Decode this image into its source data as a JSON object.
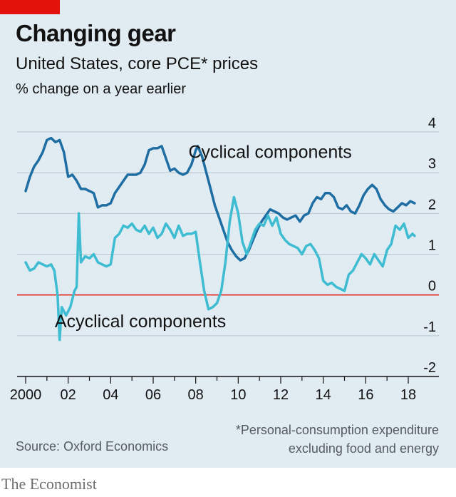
{
  "header": {
    "title": "Changing gear",
    "subtitle": "United States, core PCE* prices",
    "unit": "% change on a year earlier"
  },
  "footer": {
    "footnote_line1": "*Personal-consumption expenditure",
    "footnote_line2": "excluding food and energy",
    "source": "Source: Oxford Economics",
    "brand": "The Economist"
  },
  "colors": {
    "background": "#e1ebf2",
    "cyclical": "#1f6ea3",
    "acyclical": "#3ebcd2",
    "zero_line": "#e3120b",
    "grid": "#b7c6cf",
    "tag": "#e3120b"
  },
  "chart_data": {
    "type": "line",
    "title": "Changing gear",
    "subtitle": "United States, core PCE* prices",
    "ylabel": "% change on a year earlier",
    "xlim": [
      1999.7,
      2018.4
    ],
    "ylim": [
      -2,
      4
    ],
    "yticks": [
      4,
      3,
      2,
      1,
      0,
      -1,
      -2
    ],
    "xticks": [
      {
        "value": 2000,
        "label": "2000"
      },
      {
        "value": 2002,
        "label": "02"
      },
      {
        "value": 2004,
        "label": "04"
      },
      {
        "value": 2006,
        "label": "06"
      },
      {
        "value": 2008,
        "label": "08"
      },
      {
        "value": 2010,
        "label": "10"
      },
      {
        "value": 2012,
        "label": "12"
      },
      {
        "value": 2014,
        "label": "14"
      },
      {
        "value": 2016,
        "label": "16"
      },
      {
        "value": 2018,
        "label": "18"
      }
    ],
    "grid": true,
    "series": [
      {
        "name": "Cyclical components",
        "points": [
          [
            2000.0,
            2.55
          ],
          [
            2000.2,
            2.9
          ],
          [
            2000.4,
            3.15
          ],
          [
            2000.6,
            3.3
          ],
          [
            2000.8,
            3.5
          ],
          [
            2001.0,
            3.8
          ],
          [
            2001.2,
            3.85
          ],
          [
            2001.4,
            3.75
          ],
          [
            2001.6,
            3.8
          ],
          [
            2001.8,
            3.5
          ],
          [
            2002.0,
            2.9
          ],
          [
            2002.2,
            2.95
          ],
          [
            2002.4,
            2.8
          ],
          [
            2002.6,
            2.6
          ],
          [
            2002.8,
            2.6
          ],
          [
            2003.0,
            2.55
          ],
          [
            2003.2,
            2.5
          ],
          [
            2003.4,
            2.15
          ],
          [
            2003.6,
            2.2
          ],
          [
            2003.8,
            2.2
          ],
          [
            2004.0,
            2.25
          ],
          [
            2004.2,
            2.5
          ],
          [
            2004.4,
            2.65
          ],
          [
            2004.6,
            2.8
          ],
          [
            2004.8,
            2.95
          ],
          [
            2005.0,
            2.95
          ],
          [
            2005.2,
            2.95
          ],
          [
            2005.4,
            3.0
          ],
          [
            2005.6,
            3.2
          ],
          [
            2005.8,
            3.55
          ],
          [
            2006.0,
            3.6
          ],
          [
            2006.2,
            3.6
          ],
          [
            2006.4,
            3.65
          ],
          [
            2006.6,
            3.35
          ],
          [
            2006.8,
            3.05
          ],
          [
            2007.0,
            3.1
          ],
          [
            2007.2,
            3.0
          ],
          [
            2007.4,
            2.95
          ],
          [
            2007.6,
            3.0
          ],
          [
            2007.8,
            3.2
          ],
          [
            2008.0,
            3.55
          ],
          [
            2008.1,
            3.65
          ],
          [
            2008.3,
            3.4
          ],
          [
            2008.5,
            3.0
          ],
          [
            2008.7,
            2.6
          ],
          [
            2008.9,
            2.2
          ],
          [
            2009.1,
            1.9
          ],
          [
            2009.3,
            1.6
          ],
          [
            2009.5,
            1.3
          ],
          [
            2009.7,
            1.1
          ],
          [
            2009.9,
            0.95
          ],
          [
            2010.1,
            0.85
          ],
          [
            2010.3,
            0.9
          ],
          [
            2010.5,
            1.1
          ],
          [
            2010.7,
            1.35
          ],
          [
            2010.9,
            1.6
          ],
          [
            2011.1,
            1.8
          ],
          [
            2011.3,
            1.95
          ],
          [
            2011.5,
            2.1
          ],
          [
            2011.7,
            2.05
          ],
          [
            2011.9,
            2.0
          ],
          [
            2012.1,
            1.9
          ],
          [
            2012.3,
            1.85
          ],
          [
            2012.5,
            1.9
          ],
          [
            2012.7,
            1.95
          ],
          [
            2012.9,
            1.8
          ],
          [
            2013.1,
            1.95
          ],
          [
            2013.3,
            2.0
          ],
          [
            2013.5,
            2.25
          ],
          [
            2013.7,
            2.4
          ],
          [
            2013.9,
            2.35
          ],
          [
            2014.1,
            2.5
          ],
          [
            2014.3,
            2.5
          ],
          [
            2014.5,
            2.4
          ],
          [
            2014.7,
            2.15
          ],
          [
            2014.9,
            2.1
          ],
          [
            2015.1,
            2.2
          ],
          [
            2015.3,
            2.05
          ],
          [
            2015.5,
            2.0
          ],
          [
            2015.7,
            2.2
          ],
          [
            2015.9,
            2.45
          ],
          [
            2016.1,
            2.6
          ],
          [
            2016.3,
            2.7
          ],
          [
            2016.5,
            2.6
          ],
          [
            2016.7,
            2.35
          ],
          [
            2016.9,
            2.2
          ],
          [
            2017.1,
            2.1
          ],
          [
            2017.3,
            2.05
          ],
          [
            2017.5,
            2.15
          ],
          [
            2017.7,
            2.25
          ],
          [
            2017.9,
            2.2
          ],
          [
            2018.1,
            2.3
          ],
          [
            2018.3,
            2.25
          ]
        ]
      },
      {
        "name": "Acyclical components",
        "points": [
          [
            2000.0,
            0.8
          ],
          [
            2000.2,
            0.6
          ],
          [
            2000.4,
            0.65
          ],
          [
            2000.6,
            0.8
          ],
          [
            2000.8,
            0.75
          ],
          [
            2001.0,
            0.7
          ],
          [
            2001.2,
            0.75
          ],
          [
            2001.35,
            0.6
          ],
          [
            2001.5,
            0.0
          ],
          [
            2001.6,
            -1.1
          ],
          [
            2001.7,
            -0.3
          ],
          [
            2001.9,
            -0.5
          ],
          [
            2002.1,
            -0.3
          ],
          [
            2002.3,
            0.1
          ],
          [
            2002.4,
            0.2
          ],
          [
            2002.5,
            2.0
          ],
          [
            2002.6,
            0.8
          ],
          [
            2002.8,
            0.95
          ],
          [
            2003.0,
            0.9
          ],
          [
            2003.2,
            1.0
          ],
          [
            2003.4,
            0.8
          ],
          [
            2003.6,
            0.75
          ],
          [
            2003.8,
            0.7
          ],
          [
            2004.0,
            0.75
          ],
          [
            2004.2,
            1.4
          ],
          [
            2004.4,
            1.5
          ],
          [
            2004.6,
            1.7
          ],
          [
            2004.8,
            1.65
          ],
          [
            2005.0,
            1.75
          ],
          [
            2005.2,
            1.6
          ],
          [
            2005.4,
            1.55
          ],
          [
            2005.6,
            1.7
          ],
          [
            2005.8,
            1.5
          ],
          [
            2006.0,
            1.65
          ],
          [
            2006.2,
            1.4
          ],
          [
            2006.4,
            1.5
          ],
          [
            2006.6,
            1.75
          ],
          [
            2006.8,
            1.6
          ],
          [
            2007.0,
            1.4
          ],
          [
            2007.2,
            1.7
          ],
          [
            2007.4,
            1.45
          ],
          [
            2007.6,
            1.5
          ],
          [
            2007.8,
            1.5
          ],
          [
            2008.0,
            1.55
          ],
          [
            2008.2,
            0.8
          ],
          [
            2008.4,
            0.1
          ],
          [
            2008.6,
            -0.35
          ],
          [
            2008.8,
            -0.3
          ],
          [
            2009.0,
            -0.2
          ],
          [
            2009.2,
            0.1
          ],
          [
            2009.4,
            0.8
          ],
          [
            2009.6,
            1.8
          ],
          [
            2009.8,
            2.4
          ],
          [
            2010.0,
            2.0
          ],
          [
            2010.2,
            1.3
          ],
          [
            2010.4,
            1.0
          ],
          [
            2010.6,
            1.3
          ],
          [
            2010.8,
            1.6
          ],
          [
            2011.0,
            1.75
          ],
          [
            2011.2,
            1.7
          ],
          [
            2011.4,
            1.95
          ],
          [
            2011.6,
            1.7
          ],
          [
            2011.8,
            1.9
          ],
          [
            2012.0,
            1.5
          ],
          [
            2012.2,
            1.35
          ],
          [
            2012.4,
            1.25
          ],
          [
            2012.6,
            1.2
          ],
          [
            2012.8,
            1.15
          ],
          [
            2013.0,
            1.0
          ],
          [
            2013.2,
            1.2
          ],
          [
            2013.4,
            1.25
          ],
          [
            2013.6,
            1.1
          ],
          [
            2013.8,
            0.9
          ],
          [
            2014.0,
            0.35
          ],
          [
            2014.2,
            0.25
          ],
          [
            2014.4,
            0.3
          ],
          [
            2014.6,
            0.2
          ],
          [
            2014.8,
            0.15
          ],
          [
            2015.0,
            0.1
          ],
          [
            2015.2,
            0.5
          ],
          [
            2015.4,
            0.6
          ],
          [
            2015.6,
            0.8
          ],
          [
            2015.8,
            1.0
          ],
          [
            2016.0,
            0.9
          ],
          [
            2016.2,
            0.75
          ],
          [
            2016.4,
            1.0
          ],
          [
            2016.6,
            0.85
          ],
          [
            2016.8,
            0.7
          ],
          [
            2017.0,
            1.1
          ],
          [
            2017.2,
            1.25
          ],
          [
            2017.4,
            1.7
          ],
          [
            2017.6,
            1.6
          ],
          [
            2017.8,
            1.75
          ],
          [
            2018.0,
            1.4
          ],
          [
            2018.2,
            1.5
          ],
          [
            2018.3,
            1.45
          ]
        ]
      }
    ],
    "annotations": [
      {
        "text": "Cyclical components",
        "x": 2011.5,
        "y": 3.5
      },
      {
        "text": "Acyclical components",
        "x": 2005.4,
        "y": -0.65
      }
    ]
  }
}
